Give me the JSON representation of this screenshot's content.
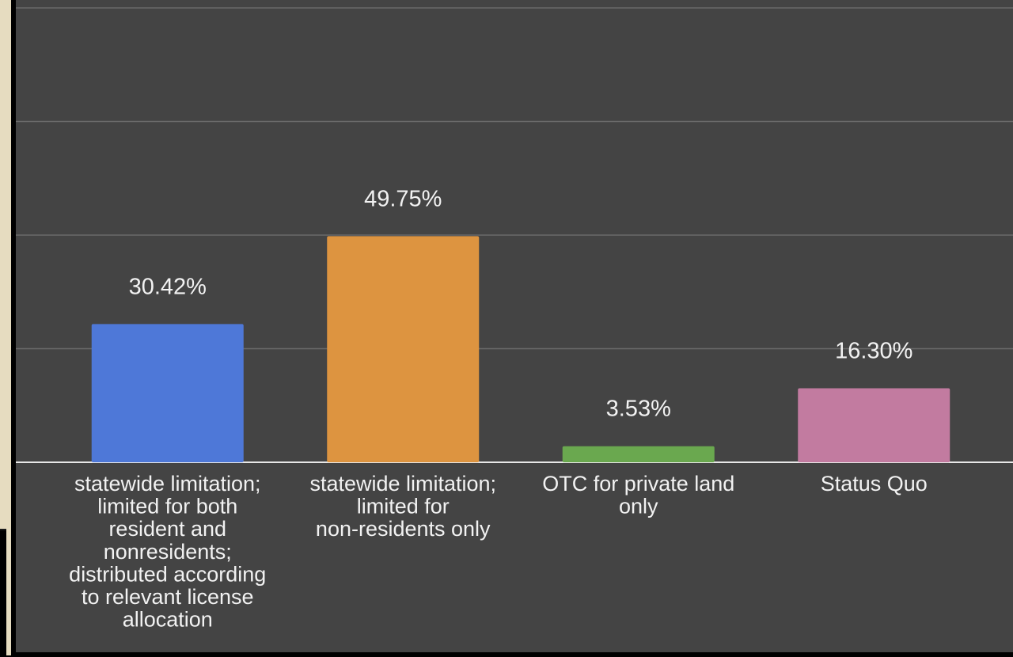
{
  "chart_data": {
    "type": "bar",
    "categories": [
      [
        "statewide limitation;",
        "limited for both",
        "resident and",
        "nonresidents;",
        "distributed according",
        "to relevant license",
        "allocation"
      ],
      [
        "statewide limitation;",
        "limited for",
        "non-residents only"
      ],
      [
        "OTC for private land",
        "only"
      ],
      [
        "Status Quo"
      ]
    ],
    "values": [
      30.42,
      49.75,
      3.53,
      16.3
    ],
    "data_labels": [
      "30.42%",
      "49.75%",
      "3.53%",
      "16.30%"
    ],
    "colors": [
      "#4e78d8",
      "#dd9440",
      "#6aa84f",
      "#c27ba0"
    ],
    "ylim": [
      0,
      100
    ],
    "gridlines": [
      0,
      25,
      50,
      75,
      100
    ],
    "grid": true,
    "title": "",
    "xlabel": "",
    "ylabel": ""
  }
}
